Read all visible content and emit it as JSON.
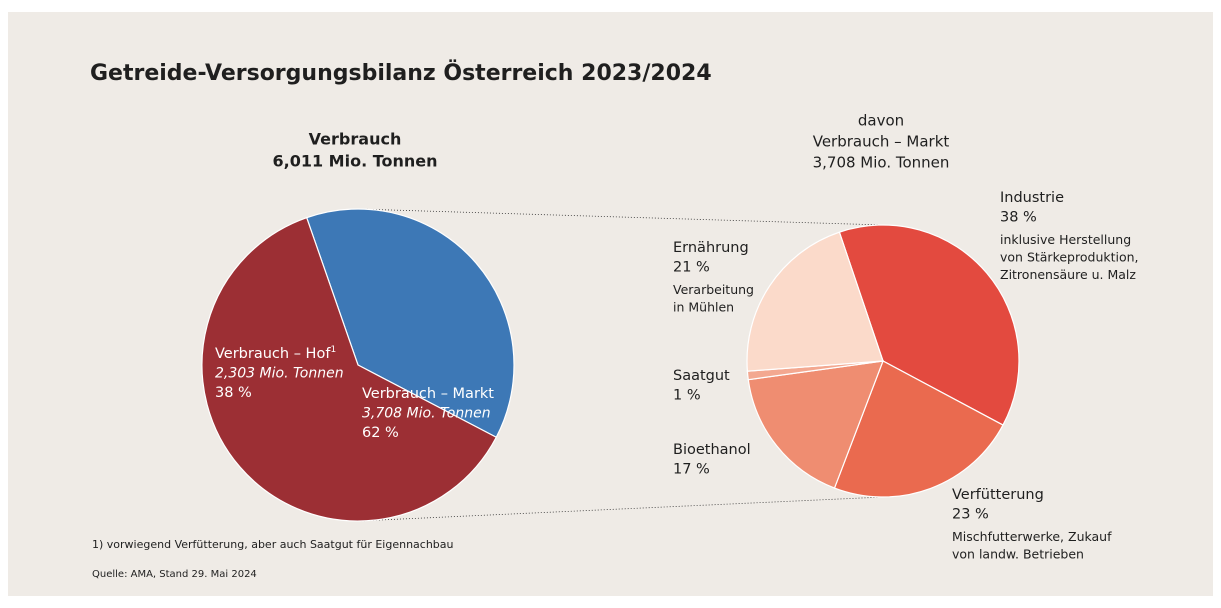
{
  "title": "Getreide-Versorgungsbilanz Österreich 2023/2024",
  "chart_data": [
    {
      "type": "pie",
      "title": [
        "Verbrauch",
        "6,011 Mio. Tonnen"
      ],
      "categories": [
        "Verbrauch – Hof",
        "Verbrauch – Markt"
      ],
      "footnote_markers": [
        "1",
        null
      ],
      "notes": [
        "2,303 Mio. Tonnen",
        "3,708 Mio. Tonnen"
      ],
      "values": [
        38,
        62
      ],
      "value_labels": [
        "38 %",
        "62 %"
      ],
      "colors": [
        "#3d78b6",
        "#9c2f34"
      ]
    },
    {
      "type": "pie",
      "title": [
        "davon",
        "Verbrauch – Markt",
        "3,708 Mio. Tonnen"
      ],
      "categories": [
        "Industrie",
        "Verfütterung",
        "Bioethanol",
        "Saatgut",
        "Ernährung"
      ],
      "values": [
        38,
        23,
        17,
        1,
        21
      ],
      "value_labels": [
        "38 %",
        "23 %",
        "17 %",
        "1 %",
        "21 %"
      ],
      "details": [
        [
          "inklusive Herstellung",
          "von Stärkeproduktion,",
          "Zitronensäure u. Malz"
        ],
        [
          "Mischfutterwerke, Zukauf",
          "von landw. Betrieben"
        ],
        null,
        null,
        [
          "Verarbeitung",
          "in Mühlen"
        ]
      ],
      "colors": [
        "#e34a3f",
        "#ea6a4f",
        "#ef8d71",
        "#f3a890",
        "#fbdaca"
      ]
    }
  ],
  "footnote": "1) vorwiegend Verfütterung, aber auch Saatgut für Eigennachbau",
  "source": "Quelle: AMA, Stand 29. Mai 2024"
}
